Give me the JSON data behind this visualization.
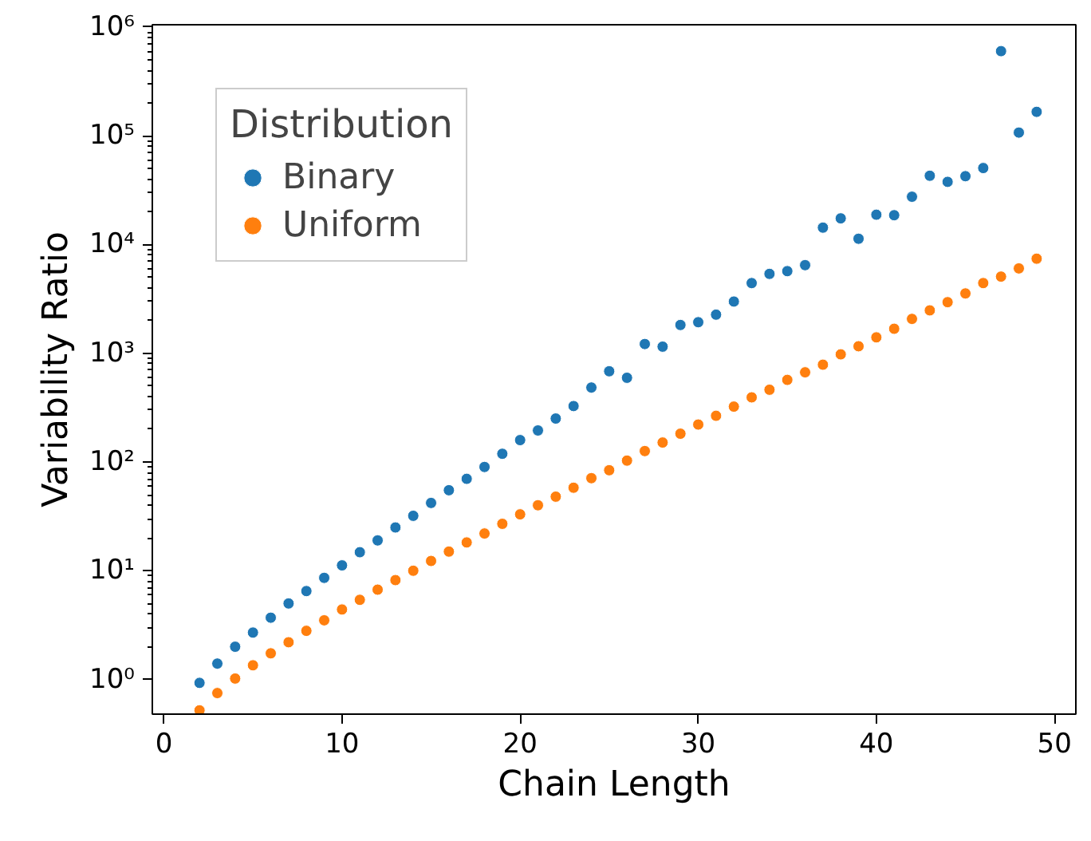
{
  "chart_data": {
    "type": "scatter",
    "xlabel": "Chain Length",
    "ylabel": "Variability Ratio",
    "legend_title": "Distribution",
    "legend": "top left",
    "log": "y",
    "grid": false,
    "marker": "circle",
    "x": [
      2,
      3,
      4,
      5,
      6,
      7,
      8,
      9,
      10,
      11,
      12,
      13,
      14,
      15,
      16,
      17,
      18,
      19,
      20,
      21,
      22,
      23,
      24,
      25,
      26,
      27,
      28,
      29,
      30,
      31,
      32,
      33,
      34,
      35,
      36,
      37,
      38,
      39,
      40,
      41,
      42,
      43,
      44,
      45,
      46,
      47,
      48,
      49
    ],
    "xlim": [
      -0.65,
      51.2
    ],
    "xticks": [
      0,
      10,
      20,
      30,
      40,
      50
    ],
    "ylim": [
      0.48,
      1050000
    ],
    "yticks": [
      {
        "value": 1,
        "label": "10⁰"
      },
      {
        "value": 10,
        "label": "10¹"
      },
      {
        "value": 100,
        "label": "10²"
      },
      {
        "value": 1000,
        "label": "10³"
      },
      {
        "value": 10000,
        "label": "10⁴"
      },
      {
        "value": 100000,
        "label": "10⁵"
      },
      {
        "value": 1000000,
        "label": "10⁶"
      }
    ],
    "series": [
      {
        "name": "Binary",
        "color": "#1f77b4",
        "values": [
          0.93,
          1.4,
          2.0,
          2.7,
          3.7,
          5.0,
          6.5,
          8.6,
          11.2,
          14.8,
          19,
          25,
          32,
          42,
          55,
          70,
          90,
          119,
          159,
          195,
          251,
          327,
          484,
          683,
          595,
          1216,
          1150,
          1820,
          1930,
          2265,
          2990,
          4420,
          5370,
          5690,
          6460,
          14300,
          17400,
          11300,
          18800,
          18600,
          27500,
          42900,
          37700,
          42500,
          50500,
          600000,
          107000,
          166000
        ]
      },
      {
        "name": "Uniform",
        "color": "#ff7f0e",
        "values": [
          0.52,
          0.75,
          1.02,
          1.35,
          1.74,
          2.2,
          2.8,
          3.5,
          4.4,
          5.4,
          6.7,
          8.2,
          10,
          12.3,
          15,
          18.2,
          22,
          27,
          33,
          40,
          48,
          58,
          71,
          84,
          103,
          126,
          151,
          182,
          221,
          266,
          323,
          393,
          462,
          569,
          668,
          785,
          977,
          1160,
          1400,
          1680,
          2070,
          2480,
          2950,
          3550,
          4420,
          5070,
          6030,
          7410
        ]
      }
    ]
  }
}
